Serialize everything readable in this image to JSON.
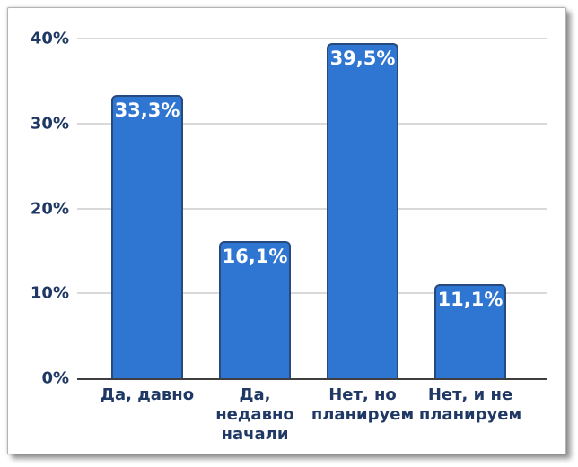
{
  "chart_data": {
    "type": "bar",
    "title": "",
    "xlabel": "",
    "ylabel": "",
    "categories": [
      "Да, давно",
      "Да,\nнедавно\nначали",
      "Нет, но\nпланируем",
      "Нет, и не\nпланируем"
    ],
    "values": [
      33.3,
      16.1,
      39.5,
      11.1
    ],
    "data_labels": [
      "33,3%",
      "16,1%",
      "39,5%",
      "11,1%"
    ],
    "ylim": [
      0,
      40
    ],
    "yticks": [
      {
        "label": "0%",
        "value": 0
      },
      {
        "label": "10%",
        "value": 10
      },
      {
        "label": "20%",
        "value": 20
      },
      {
        "label": "30%",
        "value": 30
      },
      {
        "label": "40%",
        "value": 40
      }
    ],
    "grid": true,
    "legend": false,
    "colors": {
      "bar_fill": "#2E76D2",
      "bar_border": "#26497E",
      "axis_text": "#1F3864",
      "data_label_text": "#FFFFFF",
      "gridline": "#D9D9D9",
      "axis_line": "#3F3F3F",
      "card_background": "#FFFFFF",
      "card_border": "#B3B3B3"
    }
  }
}
